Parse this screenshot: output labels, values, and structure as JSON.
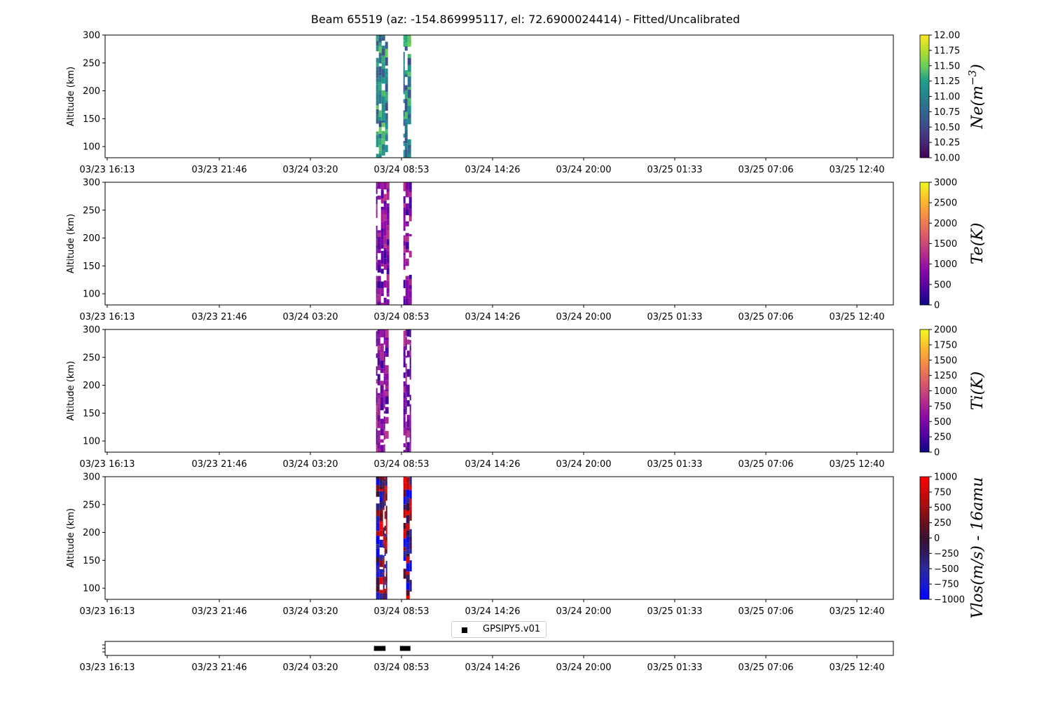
{
  "title": "Beam 65519 (az: -154.869995117, el: 72.6900024414) - Fitted/Uncalibrated",
  "time_ticks": [
    "03/23 16:13",
    "03/23 21:46",
    "03/24 03:20",
    "03/24 08:53",
    "03/24 14:26",
    "03/24 20:00",
    "03/25 01:33",
    "03/25 07:06",
    "03/25 12:40"
  ],
  "legend": {
    "label": "GPSIPY5.v01"
  },
  "chart_data": [
    {
      "type": "heatmap",
      "ylabel": "Altitude (km)",
      "ylim": [
        80,
        300
      ],
      "y_ticks": [
        "100",
        "150",
        "200",
        "250",
        "300"
      ],
      "colorbar_label": "Ne(m^-3)",
      "colorbar_ticks": [
        "10.00",
        "10.25",
        "10.50",
        "10.75",
        "11.00",
        "11.25",
        "11.50",
        "11.75",
        "12.00"
      ],
      "colormap": "viridis",
      "vmin": 10,
      "vmax": 12,
      "data_windows": [
        "03/24 07:20 - 08:00",
        "03/24 09:00 - 09:25"
      ]
    },
    {
      "type": "heatmap",
      "ylabel": "Altitude (km)",
      "ylim": [
        80,
        300
      ],
      "y_ticks": [
        "100",
        "150",
        "200",
        "250",
        "300"
      ],
      "colorbar_label": "Te(K)",
      "colorbar_ticks": [
        "0",
        "500",
        "1000",
        "1500",
        "2000",
        "2500",
        "3000"
      ],
      "colormap": "plasma",
      "vmin": 0,
      "vmax": 3000,
      "data_windows": [
        "03/24 07:20 - 08:00",
        "03/24 09:00 - 09:25"
      ]
    },
    {
      "type": "heatmap",
      "ylabel": "Altitude (km)",
      "ylim": [
        80,
        300
      ],
      "y_ticks": [
        "100",
        "150",
        "200",
        "250",
        "300"
      ],
      "colorbar_label": "Ti(K)",
      "colorbar_ticks": [
        "0",
        "250",
        "500",
        "750",
        "1000",
        "1250",
        "1500",
        "1750",
        "2000"
      ],
      "colormap": "plasma",
      "vmin": 0,
      "vmax": 2000,
      "data_windows": [
        "03/24 07:20 - 08:00",
        "03/24 09:00 - 09:25"
      ]
    },
    {
      "type": "heatmap",
      "ylabel": "Altitude (km)",
      "ylim": [
        80,
        300
      ],
      "y_ticks": [
        "100",
        "150",
        "200",
        "250",
        "300"
      ],
      "colorbar_label": "Vlos(m/s) - 16amu",
      "colorbar_ticks": [
        "−1000",
        "−750",
        "−500",
        "−250",
        "0",
        "250",
        "500",
        "750",
        "1000"
      ],
      "colormap": "blue-red",
      "vmin": -1000,
      "vmax": 1000,
      "data_windows": [
        "03/24 07:20 - 08:00",
        "03/24 09:00 - 09:25"
      ]
    },
    {
      "type": "scatter",
      "series": [
        {
          "name": "GPSIPY5.v01",
          "x_ranges": [
            "03/24 07:20 - 07:50",
            "03/24 08:55 - 09:20"
          ]
        }
      ]
    }
  ]
}
